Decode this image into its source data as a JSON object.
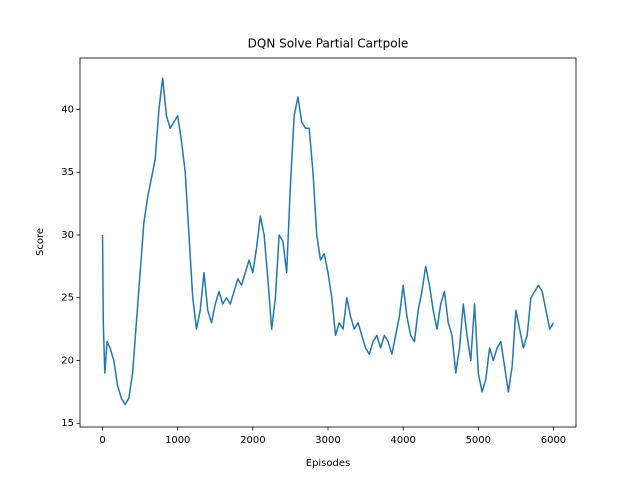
{
  "chart_data": {
    "type": "line",
    "title": "DQN Solve Partial Cartpole",
    "xlabel": "Episodes",
    "ylabel": "Score",
    "x": [
      0,
      10,
      30,
      60,
      100,
      150,
      200,
      250,
      300,
      350,
      400,
      450,
      500,
      550,
      600,
      650,
      700,
      750,
      800,
      850,
      900,
      950,
      1000,
      1050,
      1100,
      1150,
      1200,
      1250,
      1300,
      1350,
      1400,
      1450,
      1500,
      1550,
      1600,
      1650,
      1700,
      1750,
      1800,
      1850,
      1900,
      1950,
      2000,
      2050,
      2100,
      2150,
      2200,
      2250,
      2300,
      2350,
      2400,
      2450,
      2500,
      2550,
      2600,
      2650,
      2700,
      2750,
      2800,
      2850,
      2900,
      2950,
      3000,
      3050,
      3100,
      3150,
      3200,
      3250,
      3300,
      3350,
      3400,
      3450,
      3500,
      3550,
      3600,
      3650,
      3700,
      3750,
      3800,
      3850,
      3900,
      3950,
      4000,
      4050,
      4100,
      4150,
      4200,
      4250,
      4300,
      4350,
      4400,
      4450,
      4500,
      4550,
      4600,
      4650,
      4700,
      4750,
      4800,
      4850,
      4900,
      4950,
      5000,
      5050,
      5100,
      5150,
      5200,
      5250,
      5300,
      5350,
      5400,
      5450,
      5500,
      5550,
      5600,
      5650,
      5700,
      5750,
      5800,
      5850,
      5900,
      5950,
      5999
    ],
    "series": [
      {
        "name": "Score",
        "color": "#1f77b4",
        "values": [
          30,
          23,
          19,
          21.5,
          21,
          20,
          18,
          17,
          16.5,
          17,
          19,
          23,
          27,
          31,
          33,
          34.5,
          36,
          40,
          42.5,
          39.5,
          38.5,
          39,
          39.5,
          37.5,
          35,
          30,
          25,
          22.5,
          24,
          27,
          24,
          23,
          24.5,
          25.5,
          24.5,
          25,
          24.5,
          25.5,
          26.5,
          26,
          27,
          28,
          27,
          29,
          31.5,
          30,
          26.5,
          22.5,
          25,
          30,
          29.5,
          27,
          34,
          39.5,
          41,
          39,
          38.5,
          38.5,
          35,
          30,
          28,
          28.5,
          27,
          25,
          22,
          23,
          22.5,
          25,
          23.5,
          22.5,
          23,
          22,
          21,
          20.5,
          21.5,
          22,
          21,
          22,
          21.5,
          20.5,
          22,
          23.5,
          26,
          23.5,
          22,
          21.5,
          24,
          25.5,
          27.5,
          26,
          24,
          22.5,
          24.5,
          25.5,
          23,
          22,
          19,
          21,
          24.5,
          22,
          20,
          24.5,
          19,
          17.5,
          18.5,
          21,
          20,
          21,
          21.5,
          19.5,
          17.5,
          19.5,
          24,
          22.5,
          21,
          22,
          25,
          25.5,
          26,
          25.5,
          24,
          22.5,
          23
        ]
      }
    ],
    "xlim": [
      -300,
      6300
    ],
    "ylim": [
      14.7,
      44.1
    ],
    "xticks": [
      0,
      1000,
      2000,
      3000,
      4000,
      5000,
      6000
    ],
    "yticks": [
      15,
      20,
      25,
      30,
      35,
      40
    ]
  }
}
